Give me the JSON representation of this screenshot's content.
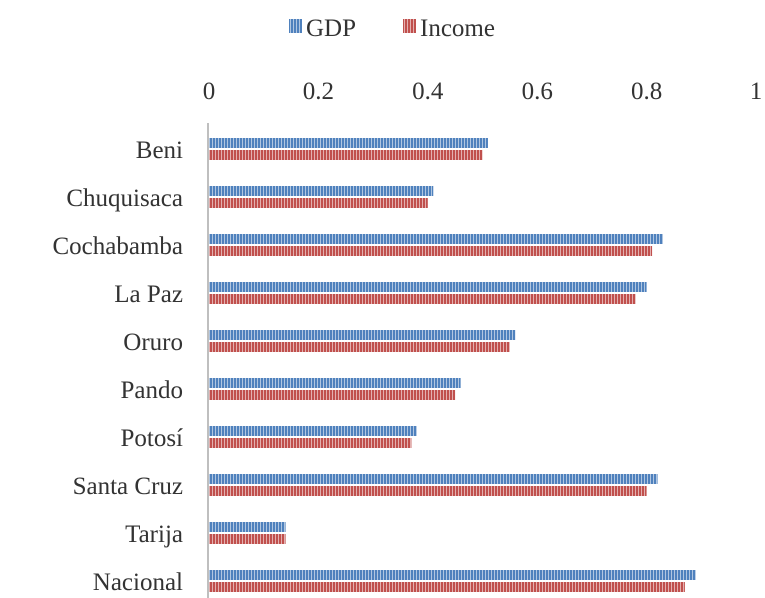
{
  "chart_data": {
    "type": "bar",
    "orientation": "horizontal",
    "title": "",
    "xlabel": "",
    "ylabel": "",
    "xlim": [
      0,
      1
    ],
    "x_ticks": [
      "0",
      "0.2",
      "0.4",
      "0.6",
      "0.8",
      "1"
    ],
    "x_tick_values": [
      0,
      0.2,
      0.4,
      0.6,
      0.8,
      1
    ],
    "x_axis_position": "top",
    "grid": false,
    "legend_position": "top",
    "categories": [
      "Beni",
      "Chuquisaca",
      "Cochabamba",
      "La Paz",
      "Oruro",
      "Pando",
      "Potosí",
      "Santa Cruz",
      "Tarija",
      "Nacional"
    ],
    "series": [
      {
        "name": "GDP",
        "color": "#4f81bd",
        "values": [
          0.51,
          0.41,
          0.83,
          0.8,
          0.56,
          0.46,
          0.38,
          0.82,
          0.14,
          0.89
        ]
      },
      {
        "name": "Income",
        "color": "#c0504d",
        "values": [
          0.5,
          0.4,
          0.81,
          0.78,
          0.55,
          0.45,
          0.37,
          0.8,
          0.14,
          0.87
        ]
      }
    ]
  }
}
